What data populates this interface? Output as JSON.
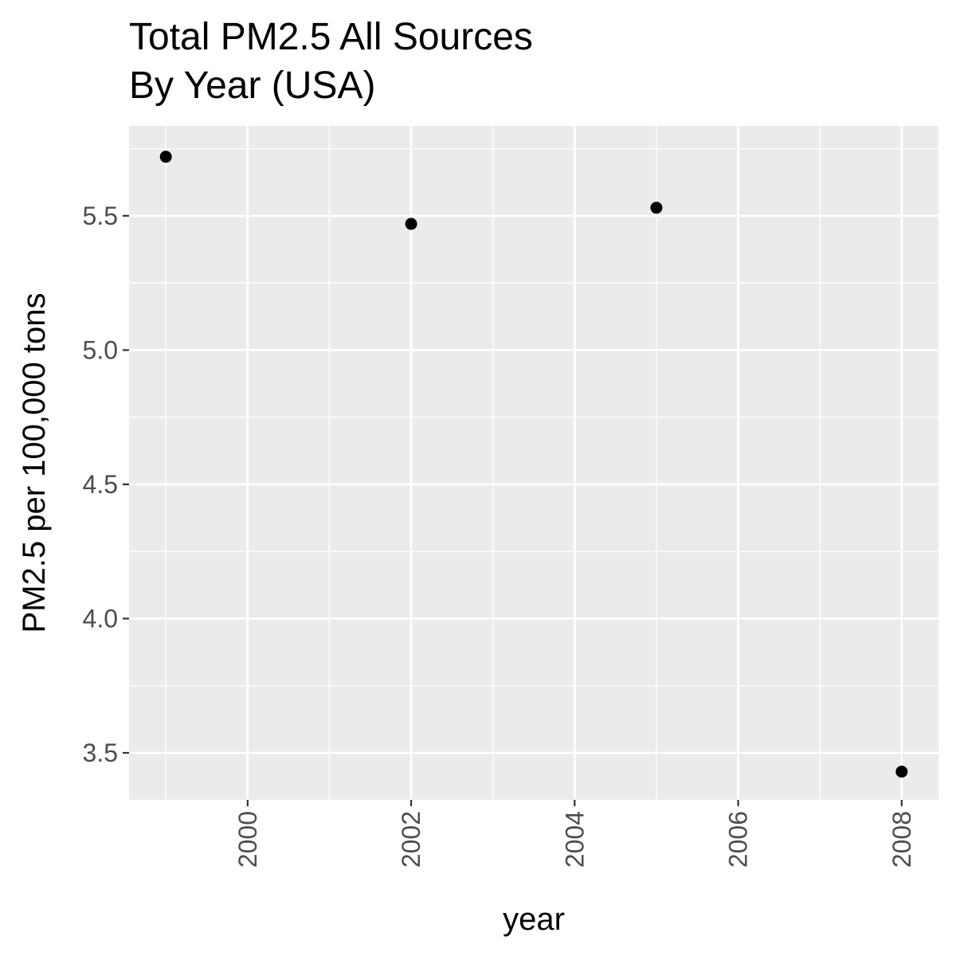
{
  "chart_data": {
    "type": "scatter",
    "title": [
      "Total PM2.5 All Sources",
      "By Year (USA)"
    ],
    "xlabel": "year",
    "ylabel": "PM2.5 per 100,000 tons",
    "x": [
      1999,
      2002,
      2005,
      2008
    ],
    "y": [
      5.72,
      5.47,
      5.53,
      3.43
    ],
    "xlim": [
      1998.55,
      2008.45
    ],
    "ylim": [
      3.325,
      5.835
    ],
    "x_ticks": [
      2000,
      2002,
      2004,
      2006,
      2008
    ],
    "x_tick_labels": [
      "2000",
      "2002",
      "2004",
      "2006",
      "2008"
    ],
    "y_ticks": [
      3.5,
      4.0,
      4.5,
      5.0,
      5.5
    ],
    "y_tick_labels": [
      "3.5",
      "4.0",
      "4.5",
      "5.0",
      "5.5"
    ],
    "grid": true,
    "legend": "none",
    "colors": {
      "panel_background": "#ebebeb",
      "grid_major": "#ffffff",
      "point": "#000000",
      "tick_label": "#4d4d4d",
      "text": "#000000"
    }
  }
}
